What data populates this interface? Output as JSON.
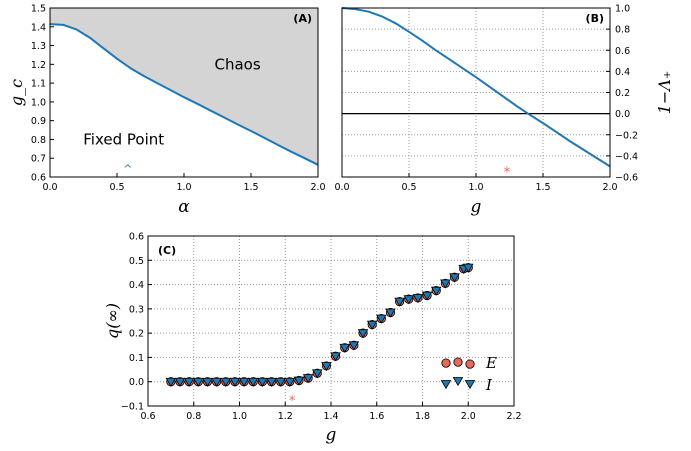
{
  "chart_data": [
    {
      "panel": "(A)",
      "type": "area",
      "xlabel": "α",
      "ylabel": "g_c",
      "xlim": [
        0.0,
        2.0
      ],
      "ylim": [
        0.6,
        1.5
      ],
      "xticks": [
        "0.0",
        "0.5",
        "1.0",
        "1.5",
        "2.0"
      ],
      "yticks": [
        "0.6",
        "0.7",
        "0.8",
        "0.9",
        "1.0",
        "1.1",
        "1.2",
        "1.3",
        "1.4",
        "1.5"
      ],
      "grid": false,
      "annotations": [
        "Chaos",
        "Fixed Point",
        "^"
      ],
      "marker_x": 0.58,
      "marker_y": 0.645,
      "curve_color": "#1f77b4",
      "fill_color": "#d4d4d4",
      "curve": {
        "x": [
          0.0,
          0.1,
          0.2,
          0.3,
          0.4,
          0.5,
          0.6,
          0.7,
          0.8,
          0.9,
          1.0,
          1.1,
          1.2,
          1.3,
          1.4,
          1.5,
          1.6,
          1.7,
          1.8,
          1.9,
          2.0
        ],
        "y": [
          1.414,
          1.41,
          1.385,
          1.34,
          1.285,
          1.23,
          1.18,
          1.138,
          1.1,
          1.063,
          1.025,
          0.99,
          0.953,
          0.917,
          0.88,
          0.845,
          0.808,
          0.771,
          0.735,
          0.7,
          0.665
        ]
      }
    },
    {
      "panel": "(B)",
      "type": "line",
      "xlabel": "g",
      "ylabel": "1−Λ₊",
      "xlim": [
        0.0,
        2.0
      ],
      "ylim": [
        -0.6,
        1.0
      ],
      "xticks": [
        "0.0",
        "0.5",
        "1.0",
        "1.5",
        "2.0"
      ],
      "yticks": [
        "1.0",
        "0.8",
        "0.6",
        "0.4",
        "0.2",
        "0.0",
        "−0.2",
        "−0.4",
        "−0.6"
      ],
      "grid": true,
      "hline": 0.0,
      "marker": "*",
      "marker_x": 1.23,
      "marker_y": -0.55,
      "curve_color": "#1f77b4",
      "star_color": "#e8685a",
      "curve": {
        "x": [
          0.0,
          0.1,
          0.2,
          0.3,
          0.4,
          0.5,
          0.6,
          0.7,
          0.8,
          0.9,
          1.0,
          1.1,
          1.2,
          1.3,
          1.4,
          1.5,
          1.6,
          1.7,
          1.8,
          1.9,
          2.0
        ],
        "y": [
          1.0,
          0.99,
          0.965,
          0.92,
          0.855,
          0.775,
          0.69,
          0.6,
          0.515,
          0.43,
          0.345,
          0.255,
          0.165,
          0.075,
          -0.01,
          -0.09,
          -0.175,
          -0.26,
          -0.34,
          -0.42,
          -0.5
        ]
      }
    },
    {
      "panel": "(C)",
      "type": "scatter",
      "xlabel": "g",
      "ylabel": "q(∞)",
      "xlim": [
        0.6,
        2.2
      ],
      "ylim": [
        -0.1,
        0.6
      ],
      "xticks": [
        "0.6",
        "0.8",
        "1.0",
        "1.2",
        "1.4",
        "1.6",
        "1.8",
        "2.0",
        "2.2"
      ],
      "yticks": [
        "−0.1",
        "0.0",
        "0.1",
        "0.2",
        "0.3",
        "0.4",
        "0.5",
        "0.6"
      ],
      "grid": true,
      "legend_position": "lower-right",
      "marker": "*",
      "marker_x": 1.23,
      "marker_y": -0.075,
      "star_color": "#e8685a",
      "series": [
        {
          "name": "E",
          "color": "#e8685a",
          "shape": "circle",
          "x": [
            0.7,
            0.74,
            0.78,
            0.82,
            0.86,
            0.9,
            0.94,
            0.98,
            1.02,
            1.06,
            1.1,
            1.14,
            1.18,
            1.22,
            1.26,
            1.3,
            1.34,
            1.38,
            1.42,
            1.46,
            1.5,
            1.54,
            1.58,
            1.62,
            1.66,
            1.7,
            1.74,
            1.78,
            1.82,
            1.86,
            1.9,
            1.94,
            1.98,
            2.0
          ],
          "y": [
            0.0,
            0.0,
            0.0,
            0.0,
            0.0,
            0.0,
            0.0,
            0.0,
            0.0,
            0.0,
            0.0,
            0.0,
            0.0,
            0.0,
            0.005,
            0.015,
            0.035,
            0.065,
            0.105,
            0.14,
            0.15,
            0.2,
            0.235,
            0.26,
            0.285,
            0.33,
            0.34,
            0.345,
            0.355,
            0.375,
            0.405,
            0.43,
            0.465,
            0.47
          ]
        },
        {
          "name": "I",
          "color": "#1f77b4",
          "shape": "triangle",
          "x": [
            0.7,
            0.74,
            0.78,
            0.82,
            0.86,
            0.9,
            0.94,
            0.98,
            1.02,
            1.06,
            1.1,
            1.14,
            1.18,
            1.22,
            1.26,
            1.3,
            1.34,
            1.38,
            1.42,
            1.46,
            1.5,
            1.54,
            1.58,
            1.62,
            1.66,
            1.7,
            1.74,
            1.78,
            1.82,
            1.86,
            1.9,
            1.94,
            1.98,
            2.0
          ],
          "y": [
            0.0,
            0.0,
            0.0,
            0.0,
            0.0,
            0.0,
            0.0,
            0.0,
            0.0,
            0.0,
            0.0,
            0.0,
            0.0,
            0.0,
            0.005,
            0.015,
            0.035,
            0.065,
            0.105,
            0.14,
            0.15,
            0.2,
            0.235,
            0.26,
            0.285,
            0.33,
            0.34,
            0.345,
            0.355,
            0.375,
            0.405,
            0.43,
            0.465,
            0.47
          ]
        }
      ]
    }
  ]
}
